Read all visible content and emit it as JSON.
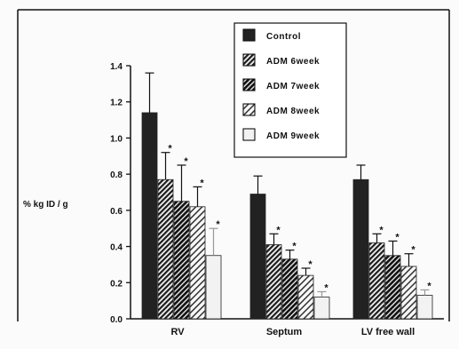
{
  "chart_data": {
    "type": "bar",
    "ylabel": "% kg ID / g",
    "ylim": [
      0,
      1.4
    ],
    "yticks": [
      "0.0",
      "0.2",
      "0.4",
      "0.6",
      "0.8",
      "1.0",
      "1.2",
      "1.4"
    ],
    "categories": [
      "RV",
      "Septum",
      "LV free wall"
    ],
    "legend_position": "top-center",
    "significance_marker": "*",
    "series": [
      {
        "name": "Control",
        "pattern": "solid",
        "values": [
          1.14,
          0.69,
          0.77
        ],
        "errors": [
          0.22,
          0.1,
          0.08
        ],
        "significant": [
          false,
          false,
          false
        ]
      },
      {
        "name": "ADM 6week",
        "pattern": "diagonal",
        "values": [
          0.77,
          0.41,
          0.42
        ],
        "errors": [
          0.15,
          0.06,
          0.05
        ],
        "significant": [
          true,
          true,
          true
        ]
      },
      {
        "name": "ADM 7week",
        "pattern": "light-top",
        "values": [
          0.65,
          0.33,
          0.35
        ],
        "errors": [
          0.2,
          0.05,
          0.08
        ],
        "significant": [
          true,
          true,
          true
        ]
      },
      {
        "name": "ADM 8week",
        "pattern": "hatched",
        "values": [
          0.62,
          0.24,
          0.29
        ],
        "errors": [
          0.11,
          0.04,
          0.07
        ],
        "significant": [
          true,
          true,
          true
        ]
      },
      {
        "name": "ADM 9week",
        "pattern": "white",
        "values": [
          0.35,
          0.12,
          0.13
        ],
        "errors": [
          0.15,
          0.03,
          0.03
        ],
        "significant": [
          true,
          true,
          true
        ]
      }
    ],
    "colors": {
      "bar_dark": "#222222",
      "bar_mid": "#3a3a3a",
      "bar_light": "#f2f2f2",
      "axis": "#111111"
    }
  }
}
